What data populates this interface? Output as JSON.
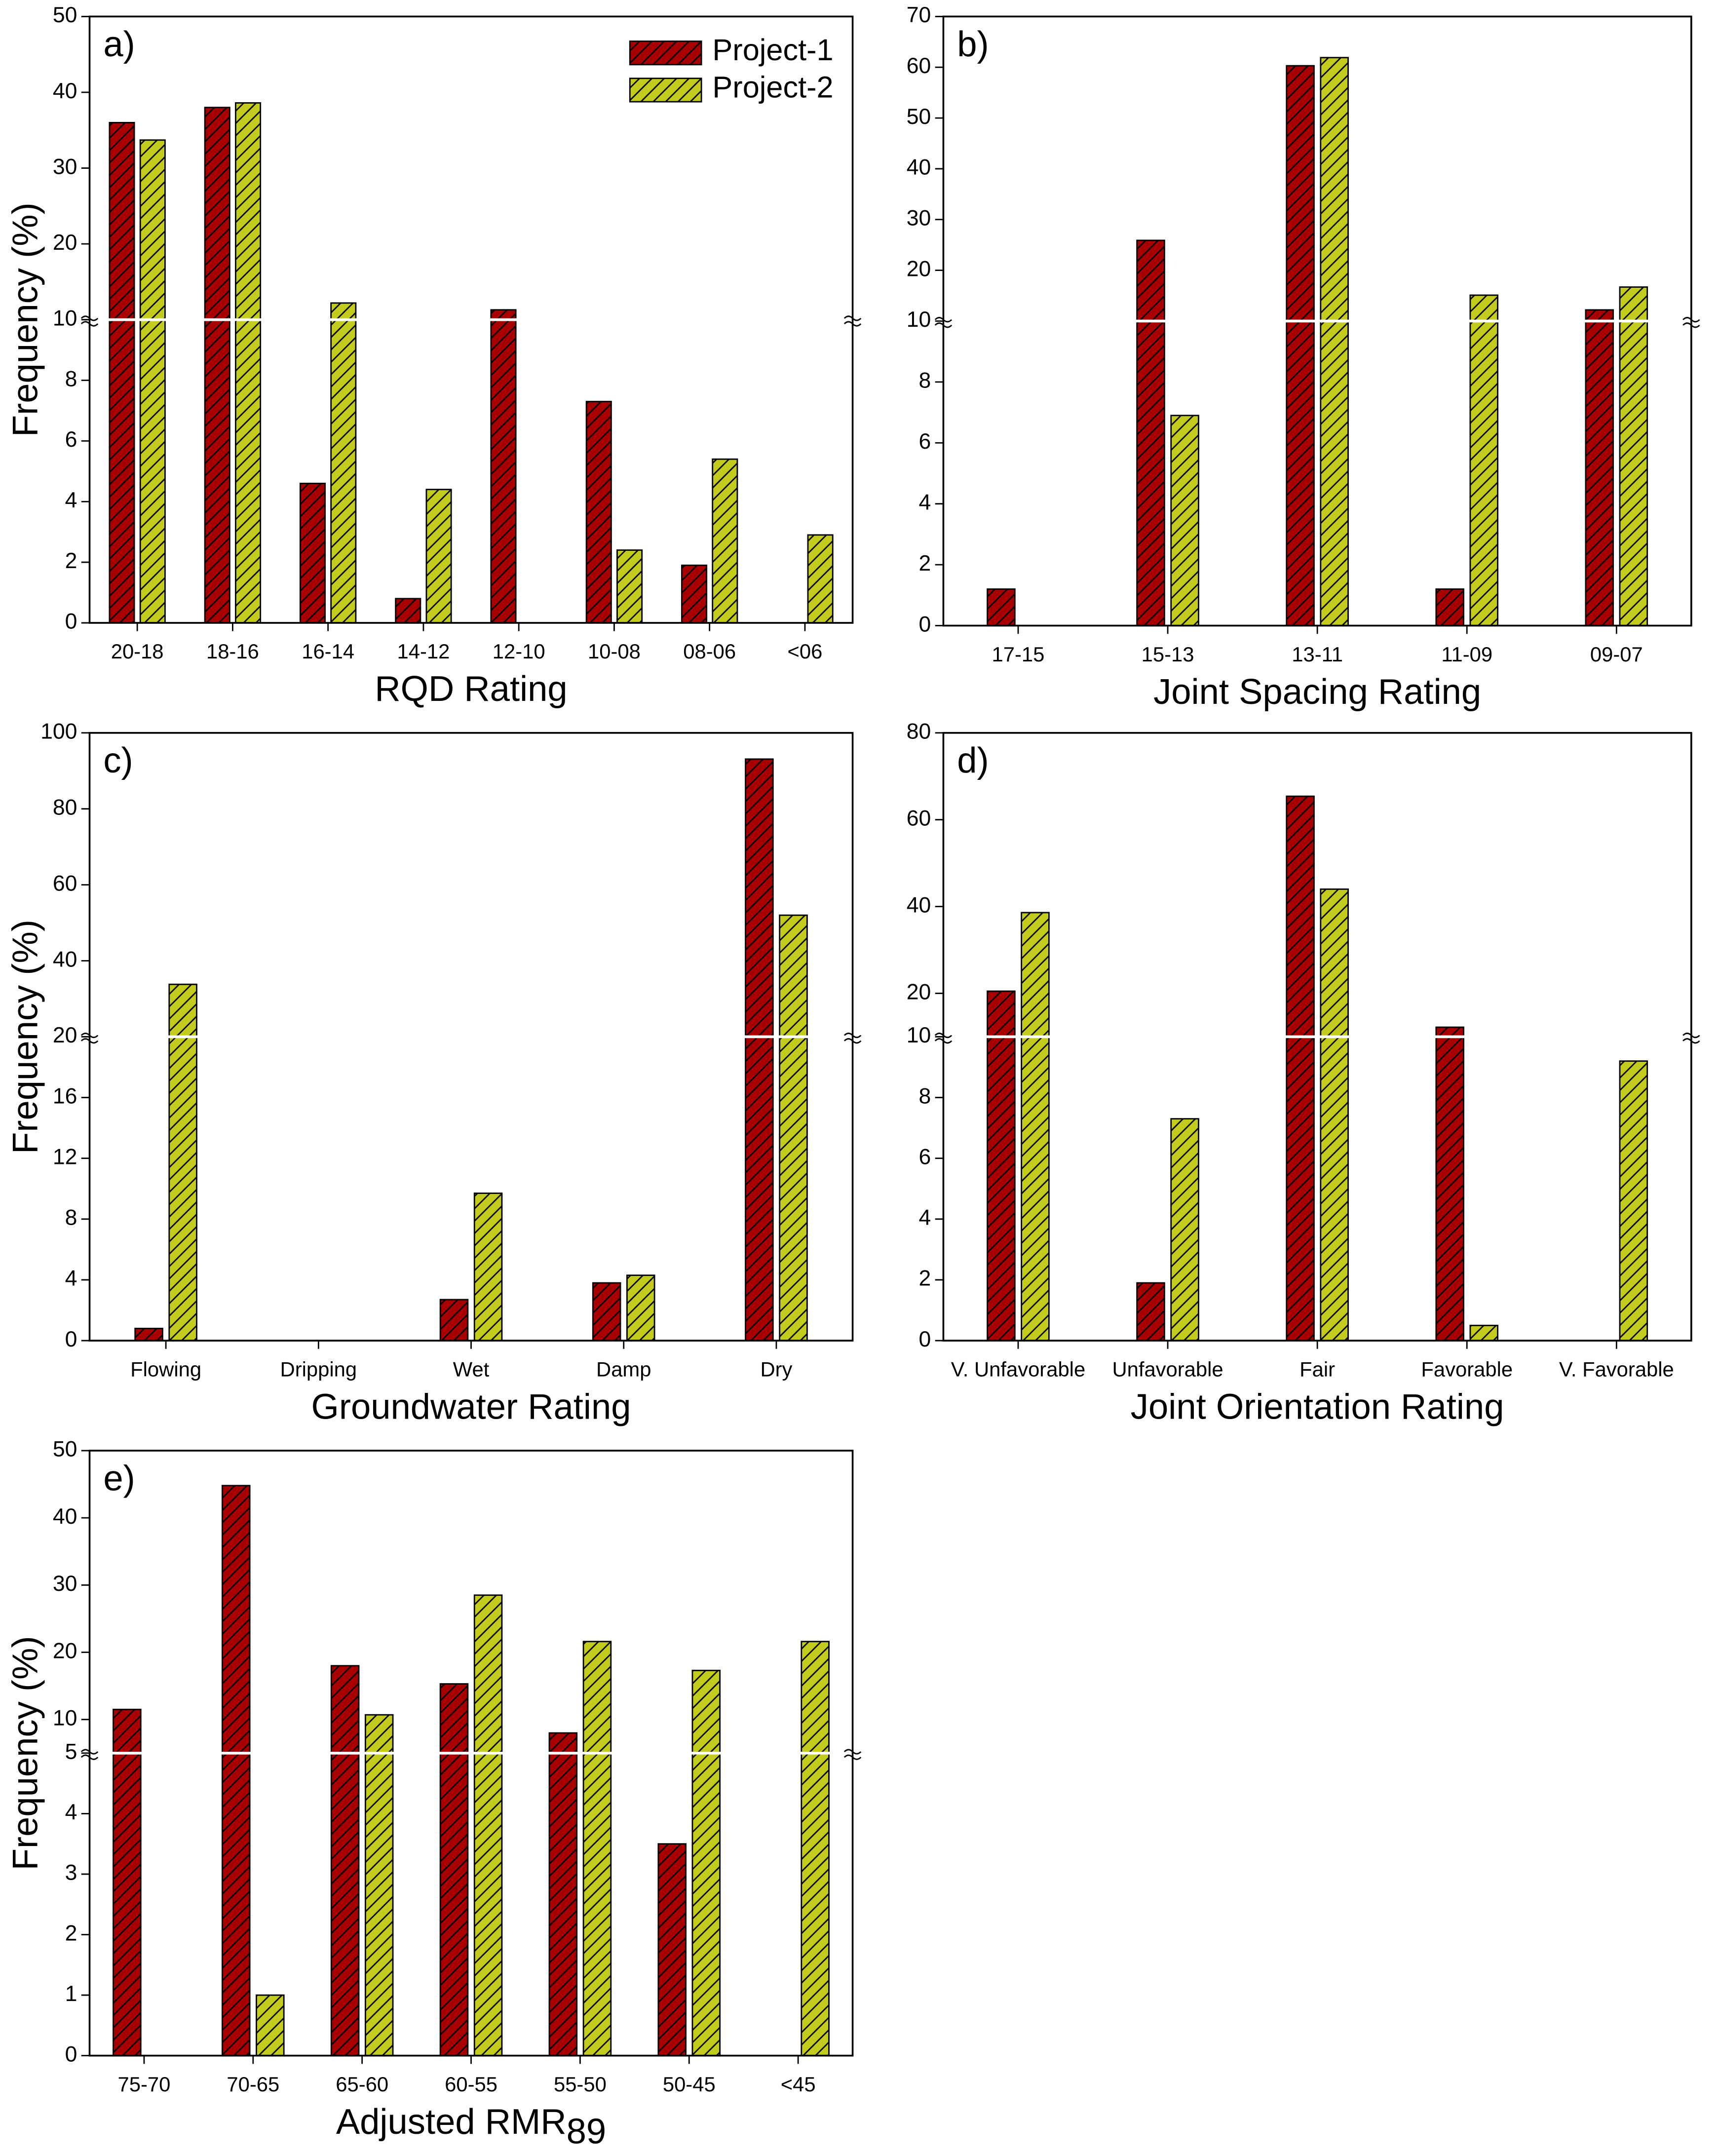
{
  "chart_data": [
    {
      "type": "bar",
      "panel_label": "a)",
      "xlabel": "RQD Rating",
      "ylabel": "Frequency (%)",
      "categories": [
        "20-18",
        "18-16",
        "16-14",
        "14-12",
        "12-10",
        "10-08",
        "08-06",
        "<06"
      ],
      "series": [
        {
          "name": "Project-1",
          "color": "#a80000",
          "values": [
            36,
            38,
            4.6,
            0.8,
            11.3,
            7.3,
            1.9,
            null
          ]
        },
        {
          "name": "Project-2",
          "color": "#c3cc1e",
          "values": [
            33.7,
            38.6,
            12.2,
            4.4,
            null,
            2.4,
            5.4,
            2.9
          ]
        }
      ],
      "ylim": [
        0,
        50
      ],
      "ybreak": 10,
      "yticks": [
        0,
        2,
        4,
        6,
        8,
        10,
        20,
        30,
        40,
        50
      ],
      "legend": "upper right"
    },
    {
      "type": "bar",
      "panel_label": "b)",
      "xlabel": "Joint Spacing Rating",
      "categories": [
        "17-15",
        "15-13",
        "13-11",
        "11-09",
        "09-07"
      ],
      "series": [
        {
          "color": "#a80000",
          "values": [
            1.2,
            25.9,
            60.3,
            1.2,
            12.2
          ]
        },
        {
          "color": "#c3cc1e",
          "values": [
            null,
            6.9,
            61.9,
            15.1,
            16.7
          ]
        }
      ],
      "ylim": [
        0,
        70
      ],
      "ybreak": 10,
      "yticks": [
        0,
        2,
        4,
        6,
        8,
        10,
        20,
        30,
        40,
        50,
        60,
        70
      ]
    },
    {
      "type": "bar",
      "panel_label": "c)",
      "xlabel": "Groundwater Rating",
      "ylabel": "Frequency (%)",
      "categories": [
        "Flowing",
        "Dripping",
        "Wet",
        "Damp",
        "Dry"
      ],
      "series": [
        {
          "color": "#a80000",
          "values": [
            0.8,
            null,
            2.7,
            3.8,
            93.1
          ]
        },
        {
          "color": "#c3cc1e",
          "values": [
            33.8,
            null,
            9.7,
            4.3,
            52
          ]
        }
      ],
      "ylim": [
        0,
        100
      ],
      "ybreak": 20,
      "yticks": [
        0,
        4,
        8,
        12,
        16,
        20,
        40,
        60,
        80,
        100
      ]
    },
    {
      "type": "bar",
      "panel_label": "d)",
      "xlabel": "Joint Orientation Rating",
      "categories": [
        "V. Unfavorable",
        "Unfavorable",
        "Fair",
        "Favorable",
        "V. Favorable"
      ],
      "series": [
        {
          "color": "#a80000",
          "values": [
            20.5,
            1.9,
            65.4,
            12.2,
            null
          ]
        },
        {
          "color": "#c3cc1e",
          "values": [
            38.6,
            7.3,
            44,
            0.5,
            9.2
          ]
        }
      ],
      "ylim": [
        0,
        80
      ],
      "ybreak": 10,
      "yticks": [
        0,
        2,
        4,
        6,
        8,
        10,
        20,
        40,
        60,
        80
      ]
    },
    {
      "type": "bar",
      "panel_label": "e)",
      "xlabel": "Adjusted RMR",
      "xlabel_subscript": "89",
      "ylabel": "Frequency (%)",
      "categories": [
        "75-70",
        "70-65",
        "65-60",
        "60-55",
        "55-50",
        "50-45",
        "<45"
      ],
      "series": [
        {
          "color": "#a80000",
          "values": [
            11.5,
            44.8,
            18,
            15.3,
            8,
            3.5,
            null
          ]
        },
        {
          "color": "#c3cc1e",
          "values": [
            null,
            1,
            10.7,
            28.5,
            21.6,
            17.3,
            21.6
          ]
        }
      ],
      "ylim": [
        0,
        50
      ],
      "ybreak": 5,
      "yticks": [
        0,
        1,
        2,
        3,
        4,
        5,
        10,
        20,
        30,
        40,
        50
      ]
    }
  ]
}
